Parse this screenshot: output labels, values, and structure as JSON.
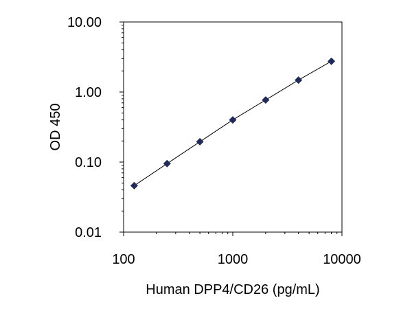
{
  "chart_data": {
    "type": "scatter",
    "xlabel": "Human DPP4/CD26 (pg/mL)",
    "ylabel": "OD 450",
    "x_scale": "log",
    "y_scale": "log",
    "xlim": [
      100,
      10000
    ],
    "ylim": [
      0.01,
      10
    ],
    "x_ticks": [
      "100",
      "1000",
      "10000"
    ],
    "y_ticks": [
      "0.01",
      "0.10",
      "1.00",
      "10.00"
    ],
    "grid": false,
    "legend": "none",
    "series": [
      {
        "x": [
          125,
          250,
          500,
          1000,
          2000,
          4000,
          8000
        ],
        "y": [
          0.046,
          0.095,
          0.195,
          0.4,
          0.77,
          1.48,
          2.75
        ],
        "marker": "diamond",
        "line": "fitted curve"
      }
    ],
    "colors": {
      "marker": "#1f2a5a",
      "line": "#000000",
      "axis": "#000000"
    }
  }
}
